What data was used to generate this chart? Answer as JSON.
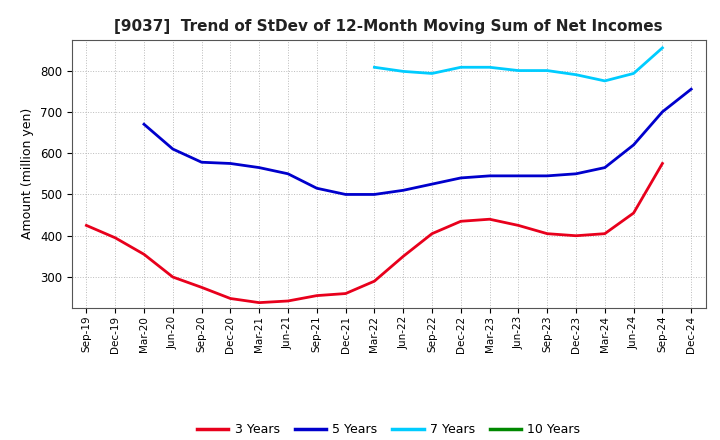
{
  "title": "[9037]  Trend of StDev of 12-Month Moving Sum of Net Incomes",
  "ylabel": "Amount (million yen)",
  "x_labels": [
    "Sep-19",
    "Dec-19",
    "Mar-20",
    "Jun-20",
    "Sep-20",
    "Dec-20",
    "Mar-21",
    "Jun-21",
    "Sep-21",
    "Dec-21",
    "Mar-22",
    "Jun-22",
    "Sep-22",
    "Dec-22",
    "Mar-23",
    "Jun-23",
    "Sep-23",
    "Dec-23",
    "Mar-24",
    "Jun-24",
    "Sep-24",
    "Dec-24"
  ],
  "y3": [
    425,
    395,
    355,
    300,
    275,
    248,
    238,
    242,
    255,
    260,
    290,
    350,
    405,
    435,
    440,
    425,
    405,
    400,
    405,
    455,
    575,
    null
  ],
  "y5": [
    null,
    null,
    670,
    610,
    578,
    575,
    565,
    550,
    515,
    500,
    500,
    510,
    525,
    540,
    545,
    545,
    545,
    550,
    565,
    620,
    700,
    755
  ],
  "y7": [
    null,
    null,
    null,
    null,
    null,
    null,
    null,
    null,
    null,
    null,
    808,
    798,
    793,
    808,
    808,
    800,
    800,
    790,
    775,
    793,
    855,
    null
  ],
  "y10": [],
  "colors": {
    "3yr": "#e8001c",
    "5yr": "#0000cc",
    "7yr": "#00ccff",
    "10yr": "#008800"
  },
  "ylim": [
    225,
    875
  ],
  "yticks": [
    300,
    400,
    500,
    600,
    700,
    800
  ],
  "background_color": "#ffffff",
  "plot_bg_color": "#ffffff",
  "grid_color": "#bbbbbb",
  "legend_labels": [
    "3 Years",
    "5 Years",
    "7 Years",
    "10 Years"
  ]
}
